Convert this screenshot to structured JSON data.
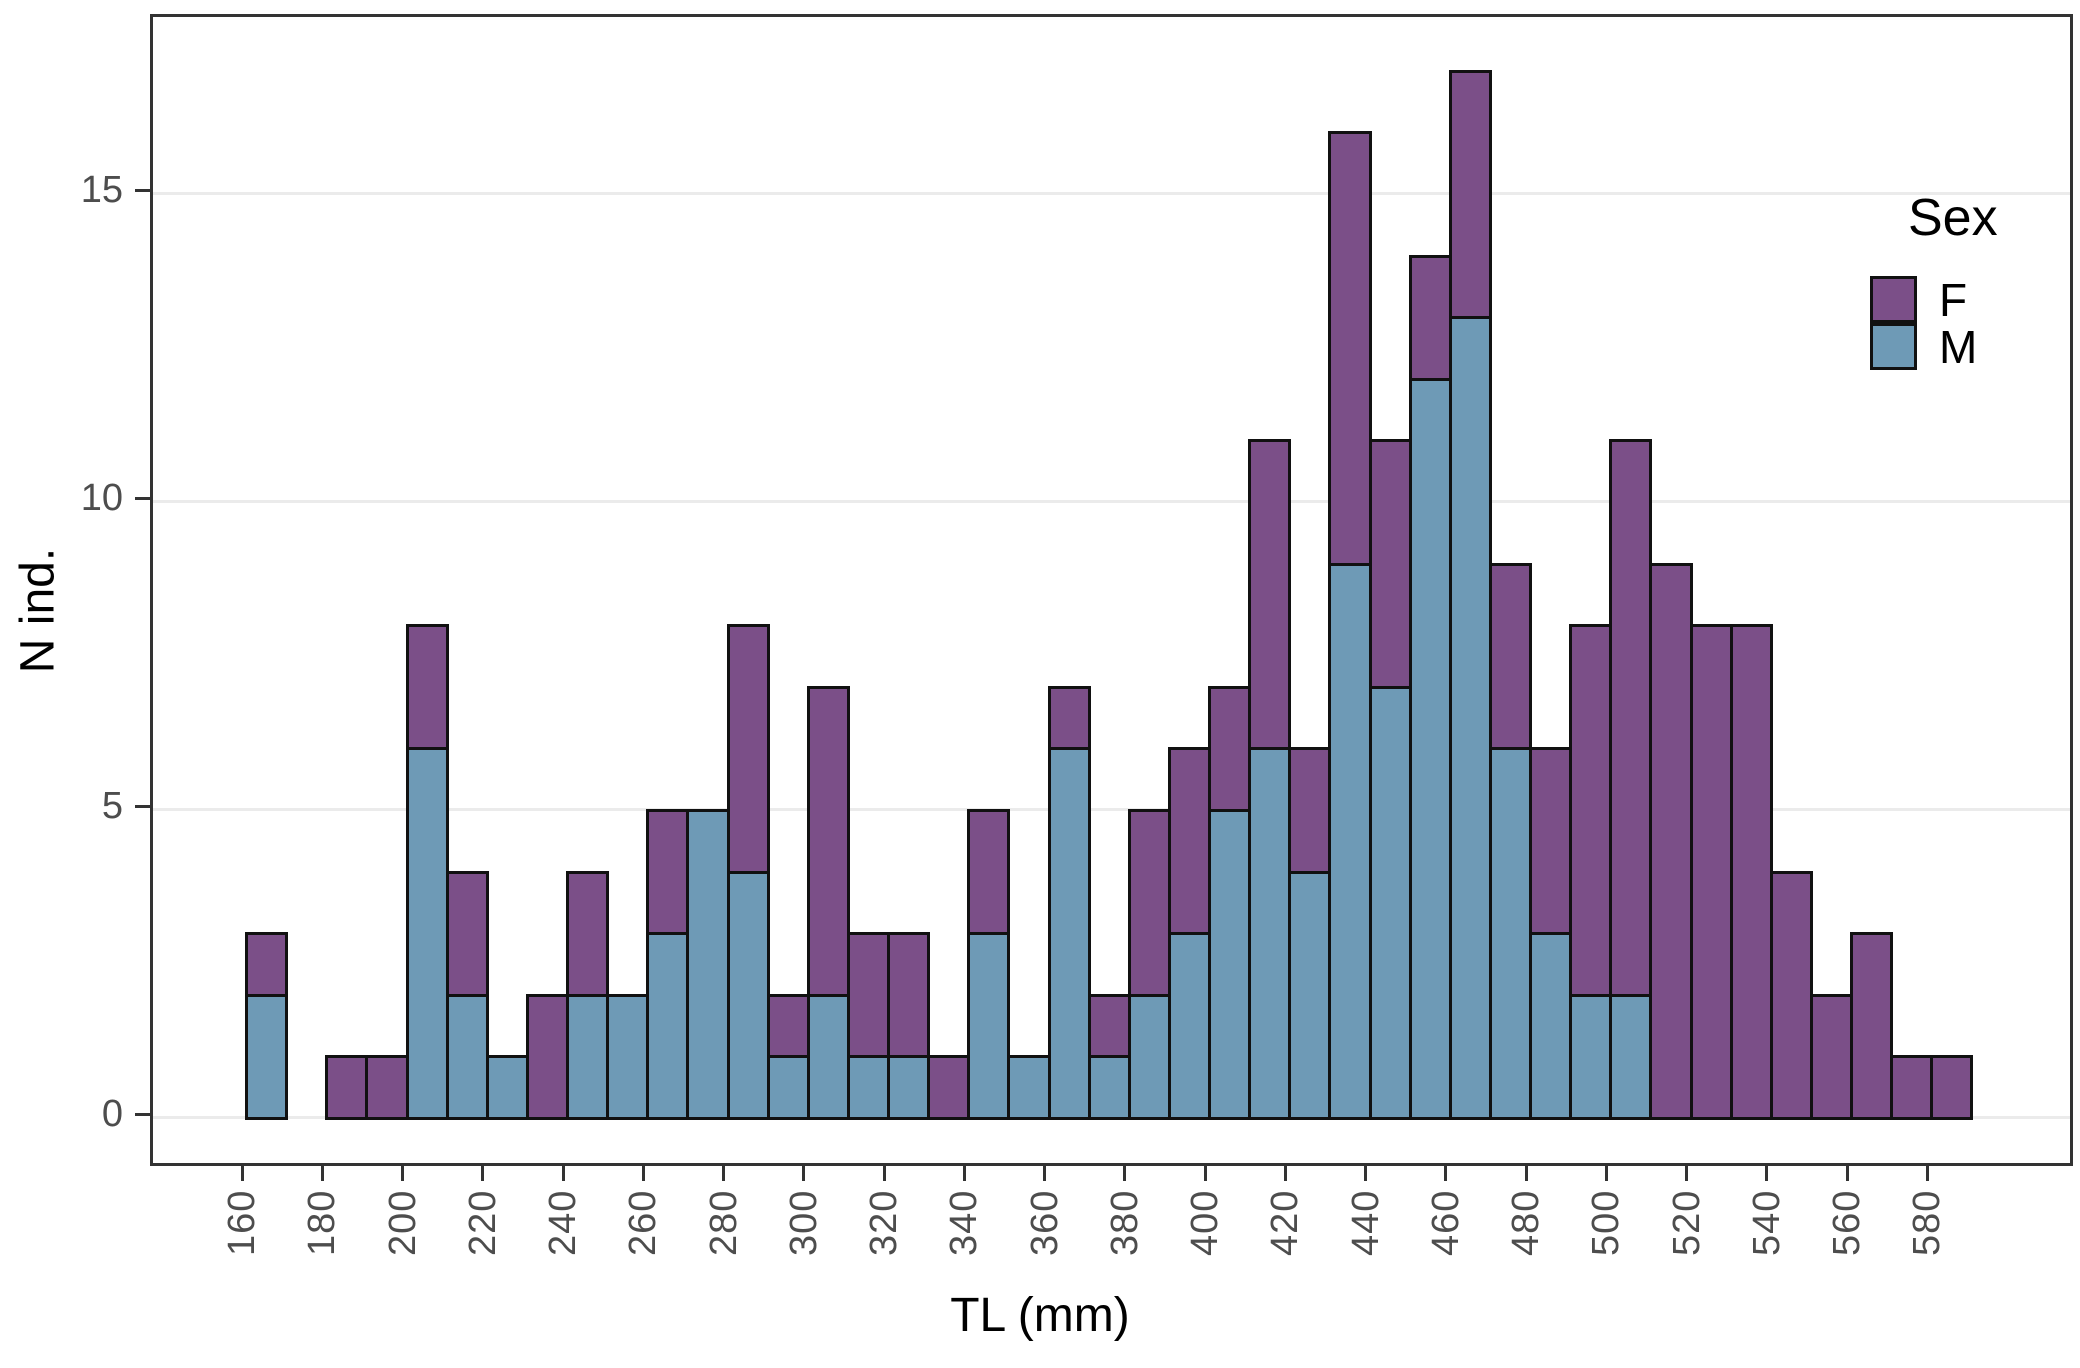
{
  "chart_data": {
    "type": "bar",
    "subtype": "stacked-histogram",
    "title": "",
    "xlabel": "TL (mm)",
    "ylabel": "N ind.",
    "bin_width_mm": 10,
    "bin_starts": [
      160,
      170,
      180,
      190,
      200,
      210,
      220,
      230,
      240,
      250,
      260,
      270,
      280,
      290,
      300,
      310,
      320,
      330,
      340,
      350,
      360,
      370,
      380,
      390,
      400,
      410,
      420,
      430,
      440,
      450,
      460,
      470,
      480,
      490,
      500,
      510,
      520,
      530,
      540,
      550,
      560,
      570,
      580
    ],
    "series": [
      {
        "name": "M",
        "color": "#6E9AB6",
        "values": [
          2,
          0,
          0,
          0,
          6,
          2,
          1,
          0,
          2,
          2,
          3,
          5,
          4,
          1,
          2,
          1,
          1,
          0,
          3,
          1,
          6,
          1,
          2,
          3,
          5,
          6,
          4,
          9,
          7,
          12,
          13,
          6,
          3,
          2,
          2,
          0,
          0,
          0,
          0,
          0,
          0,
          0,
          0
        ]
      },
      {
        "name": "F",
        "color": "#7B4F88",
        "values": [
          1,
          0,
          1,
          1,
          2,
          2,
          0,
          2,
          2,
          0,
          2,
          0,
          4,
          1,
          5,
          2,
          2,
          1,
          2,
          0,
          1,
          1,
          3,
          3,
          2,
          5,
          2,
          7,
          4,
          2,
          4,
          3,
          3,
          6,
          9,
          9,
          8,
          8,
          4,
          2,
          3,
          1,
          1
        ]
      }
    ],
    "x_ticks": [
      160,
      180,
      200,
      220,
      240,
      260,
      280,
      300,
      320,
      340,
      360,
      380,
      400,
      420,
      440,
      460,
      480,
      500,
      520,
      540,
      560,
      580
    ],
    "y_ticks": [
      0,
      5,
      10,
      15
    ],
    "ylim": [
      0,
      17.5
    ],
    "grid": "horizontal-only",
    "legend_position": "inside-top-right"
  },
  "legend": {
    "title": "Sex",
    "entries": [
      {
        "label": "F",
        "color": "#7B4F88"
      },
      {
        "label": "M",
        "color": "#6E9AB6"
      }
    ]
  },
  "axes": {
    "x_title": "TL (mm)",
    "y_title": "N ind."
  },
  "colors": {
    "female": "#7B4F88",
    "male": "#6E9AB6",
    "bar_border": "#111111",
    "panel_border": "#333333",
    "gridline": "#EBEBEB",
    "tick_text": "#4D4D4D"
  }
}
